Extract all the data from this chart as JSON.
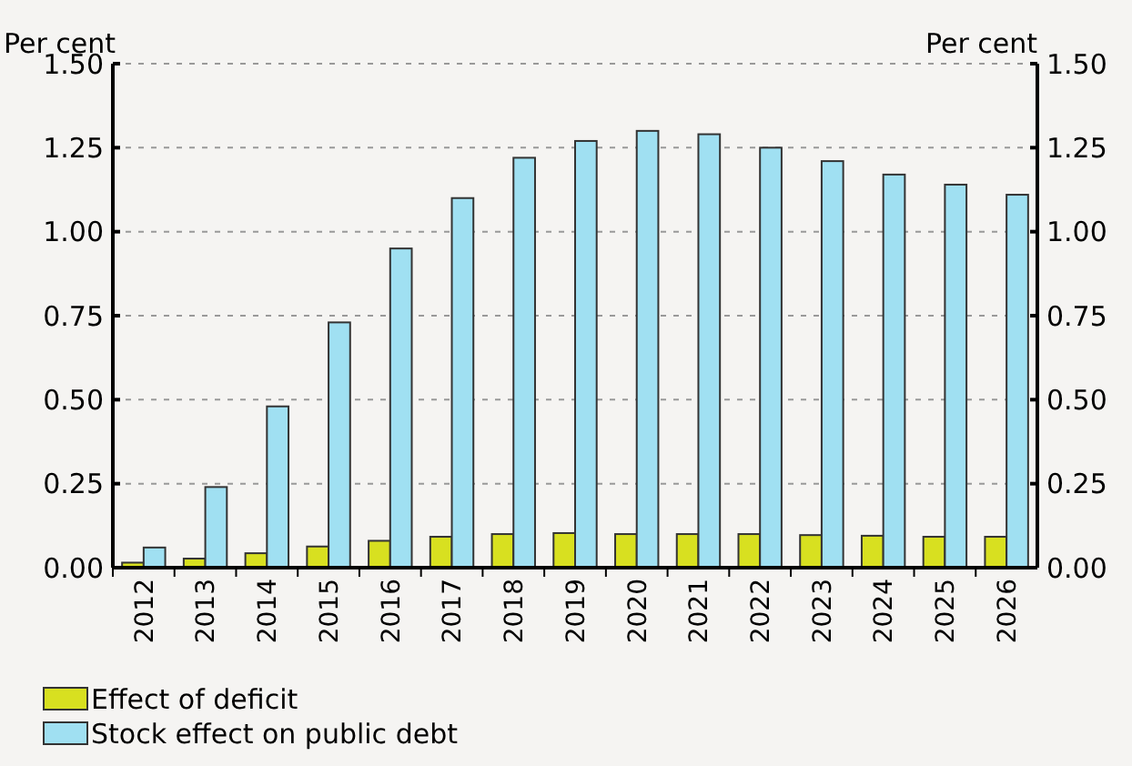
{
  "chart_data": {
    "type": "bar",
    "ylabel": "Per cent",
    "y2label": "Per cent",
    "categories": [
      "2012",
      "2013",
      "2014",
      "2015",
      "2016",
      "2017",
      "2018",
      "2019",
      "2020",
      "2021",
      "2022",
      "2023",
      "2024",
      "2025",
      "2026"
    ],
    "series": [
      {
        "name": "Effect of deficit",
        "color": "#d8e020",
        "values": [
          0.015,
          0.027,
          0.043,
          0.063,
          0.08,
          0.092,
          0.1,
          0.103,
          0.1,
          0.1,
          0.1,
          0.097,
          0.095,
          0.092,
          0.092
        ]
      },
      {
        "name": "Stock effect on public debt",
        "color": "#a0e0f2",
        "values": [
          0.06,
          0.24,
          0.48,
          0.73,
          0.95,
          1.1,
          1.22,
          1.27,
          1.3,
          1.29,
          1.25,
          1.21,
          1.17,
          1.14,
          1.11
        ]
      }
    ],
    "ylim": [
      0,
      1.5
    ],
    "yticks": [
      {
        "value": 0,
        "label": "0.00"
      },
      {
        "value": 0.25,
        "label": "0.25"
      },
      {
        "value": 0.5,
        "label": "0.50"
      },
      {
        "value": 0.75,
        "label": "0.75"
      },
      {
        "value": 1,
        "label": "1.00"
      },
      {
        "value": 1.25,
        "label": "1.25"
      },
      {
        "value": 1.5,
        "label": "1.50"
      }
    ],
    "y2lim": [
      0,
      1.5
    ],
    "y2ticks": [
      {
        "value": 0,
        "label": "0.00"
      },
      {
        "value": 0.25,
        "label": "0.25"
      },
      {
        "value": 0.5,
        "label": "0.50"
      },
      {
        "value": 0.75,
        "label": "0.75"
      },
      {
        "value": 1,
        "label": "1.00"
      },
      {
        "value": 1.25,
        "label": "1.25"
      },
      {
        "value": 1.5,
        "label": "1.50"
      }
    ],
    "grid": "y",
    "legend": "bottom"
  }
}
